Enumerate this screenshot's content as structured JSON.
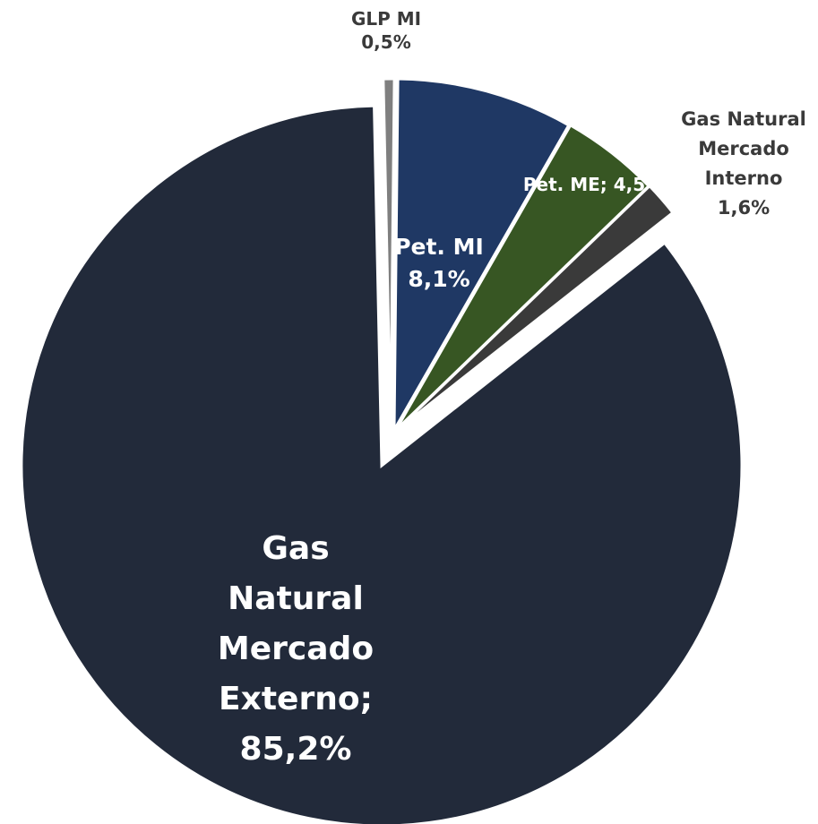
{
  "chart_data": {
    "type": "pie",
    "title": "",
    "exploded": true,
    "slices": [
      {
        "label_lines": [
          "GLP MI",
          "0,5%"
        ],
        "value": 0.5,
        "color": "#7f7f7f",
        "label_placement": "outside"
      },
      {
        "label_lines": [
          "Pet. MI",
          "8,1%"
        ],
        "value": 8.1,
        "color": "#1f3864",
        "label_placement": "inside"
      },
      {
        "label_lines": [
          "Pet. ME; 4,5"
        ],
        "value": 4.5,
        "color": "#375623",
        "label_placement": "inside"
      },
      {
        "label_lines": [
          "Gas Natural",
          "Mercado",
          "Interno",
          "1,6%"
        ],
        "value": 1.6,
        "color": "#3a3a3a",
        "label_placement": "outside"
      },
      {
        "label_lines": [
          "Gas",
          "Natural",
          "Mercado",
          "Externo;",
          "85,2%"
        ],
        "value": 85.2,
        "color": "#222a3a",
        "label_placement": "inside"
      }
    ]
  }
}
